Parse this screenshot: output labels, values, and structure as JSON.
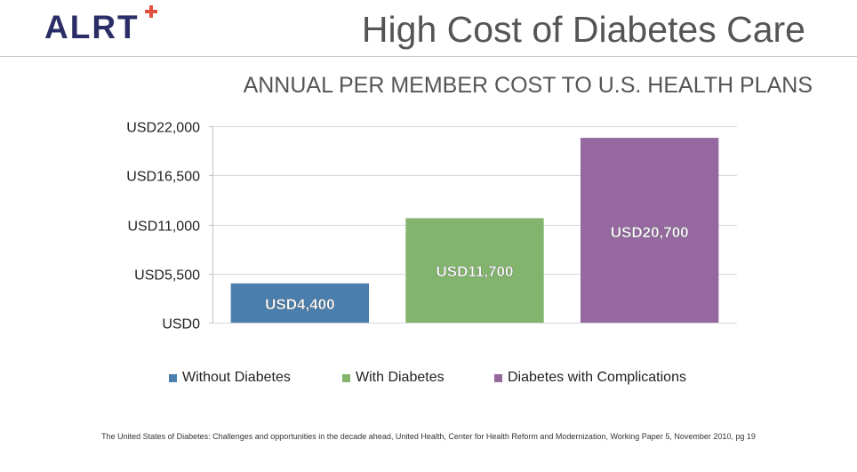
{
  "header": {
    "logo_text": "ALRT",
    "title": "High Cost of Diabetes Care"
  },
  "colors": {
    "logo": "#2b2d66",
    "logo_accent": "#e0523e"
  },
  "chart_data": {
    "type": "bar",
    "title": "ANNUAL PER MEMBER COST TO U.S. HEALTH PLANS",
    "xlabel": "",
    "ylabel": "",
    "categories": [
      "Without Diabetes",
      "With Diabetes",
      "Diabetes with Complications"
    ],
    "values": [
      4400,
      11700,
      20700
    ],
    "data_labels": [
      "USD4,400",
      "USD11,700",
      "USD20,700"
    ],
    "colors": [
      "#4a7eac",
      "#82b46d",
      "#9569a0"
    ],
    "ylim": [
      0,
      22000
    ],
    "yticks": [
      0,
      5500,
      11000,
      16500,
      22000
    ],
    "ytick_labels": [
      "USD0",
      "USD5,500",
      "USD11,000",
      "USD16,500",
      "USD22,000"
    ],
    "grid": true,
    "legend_position": "bottom"
  },
  "footnote": "The United States of Diabetes: Challenges and opportunities in the decade ahead, United Health, Center for Health Reform and Modernization, Working Paper 5, November 2010, pg 19"
}
